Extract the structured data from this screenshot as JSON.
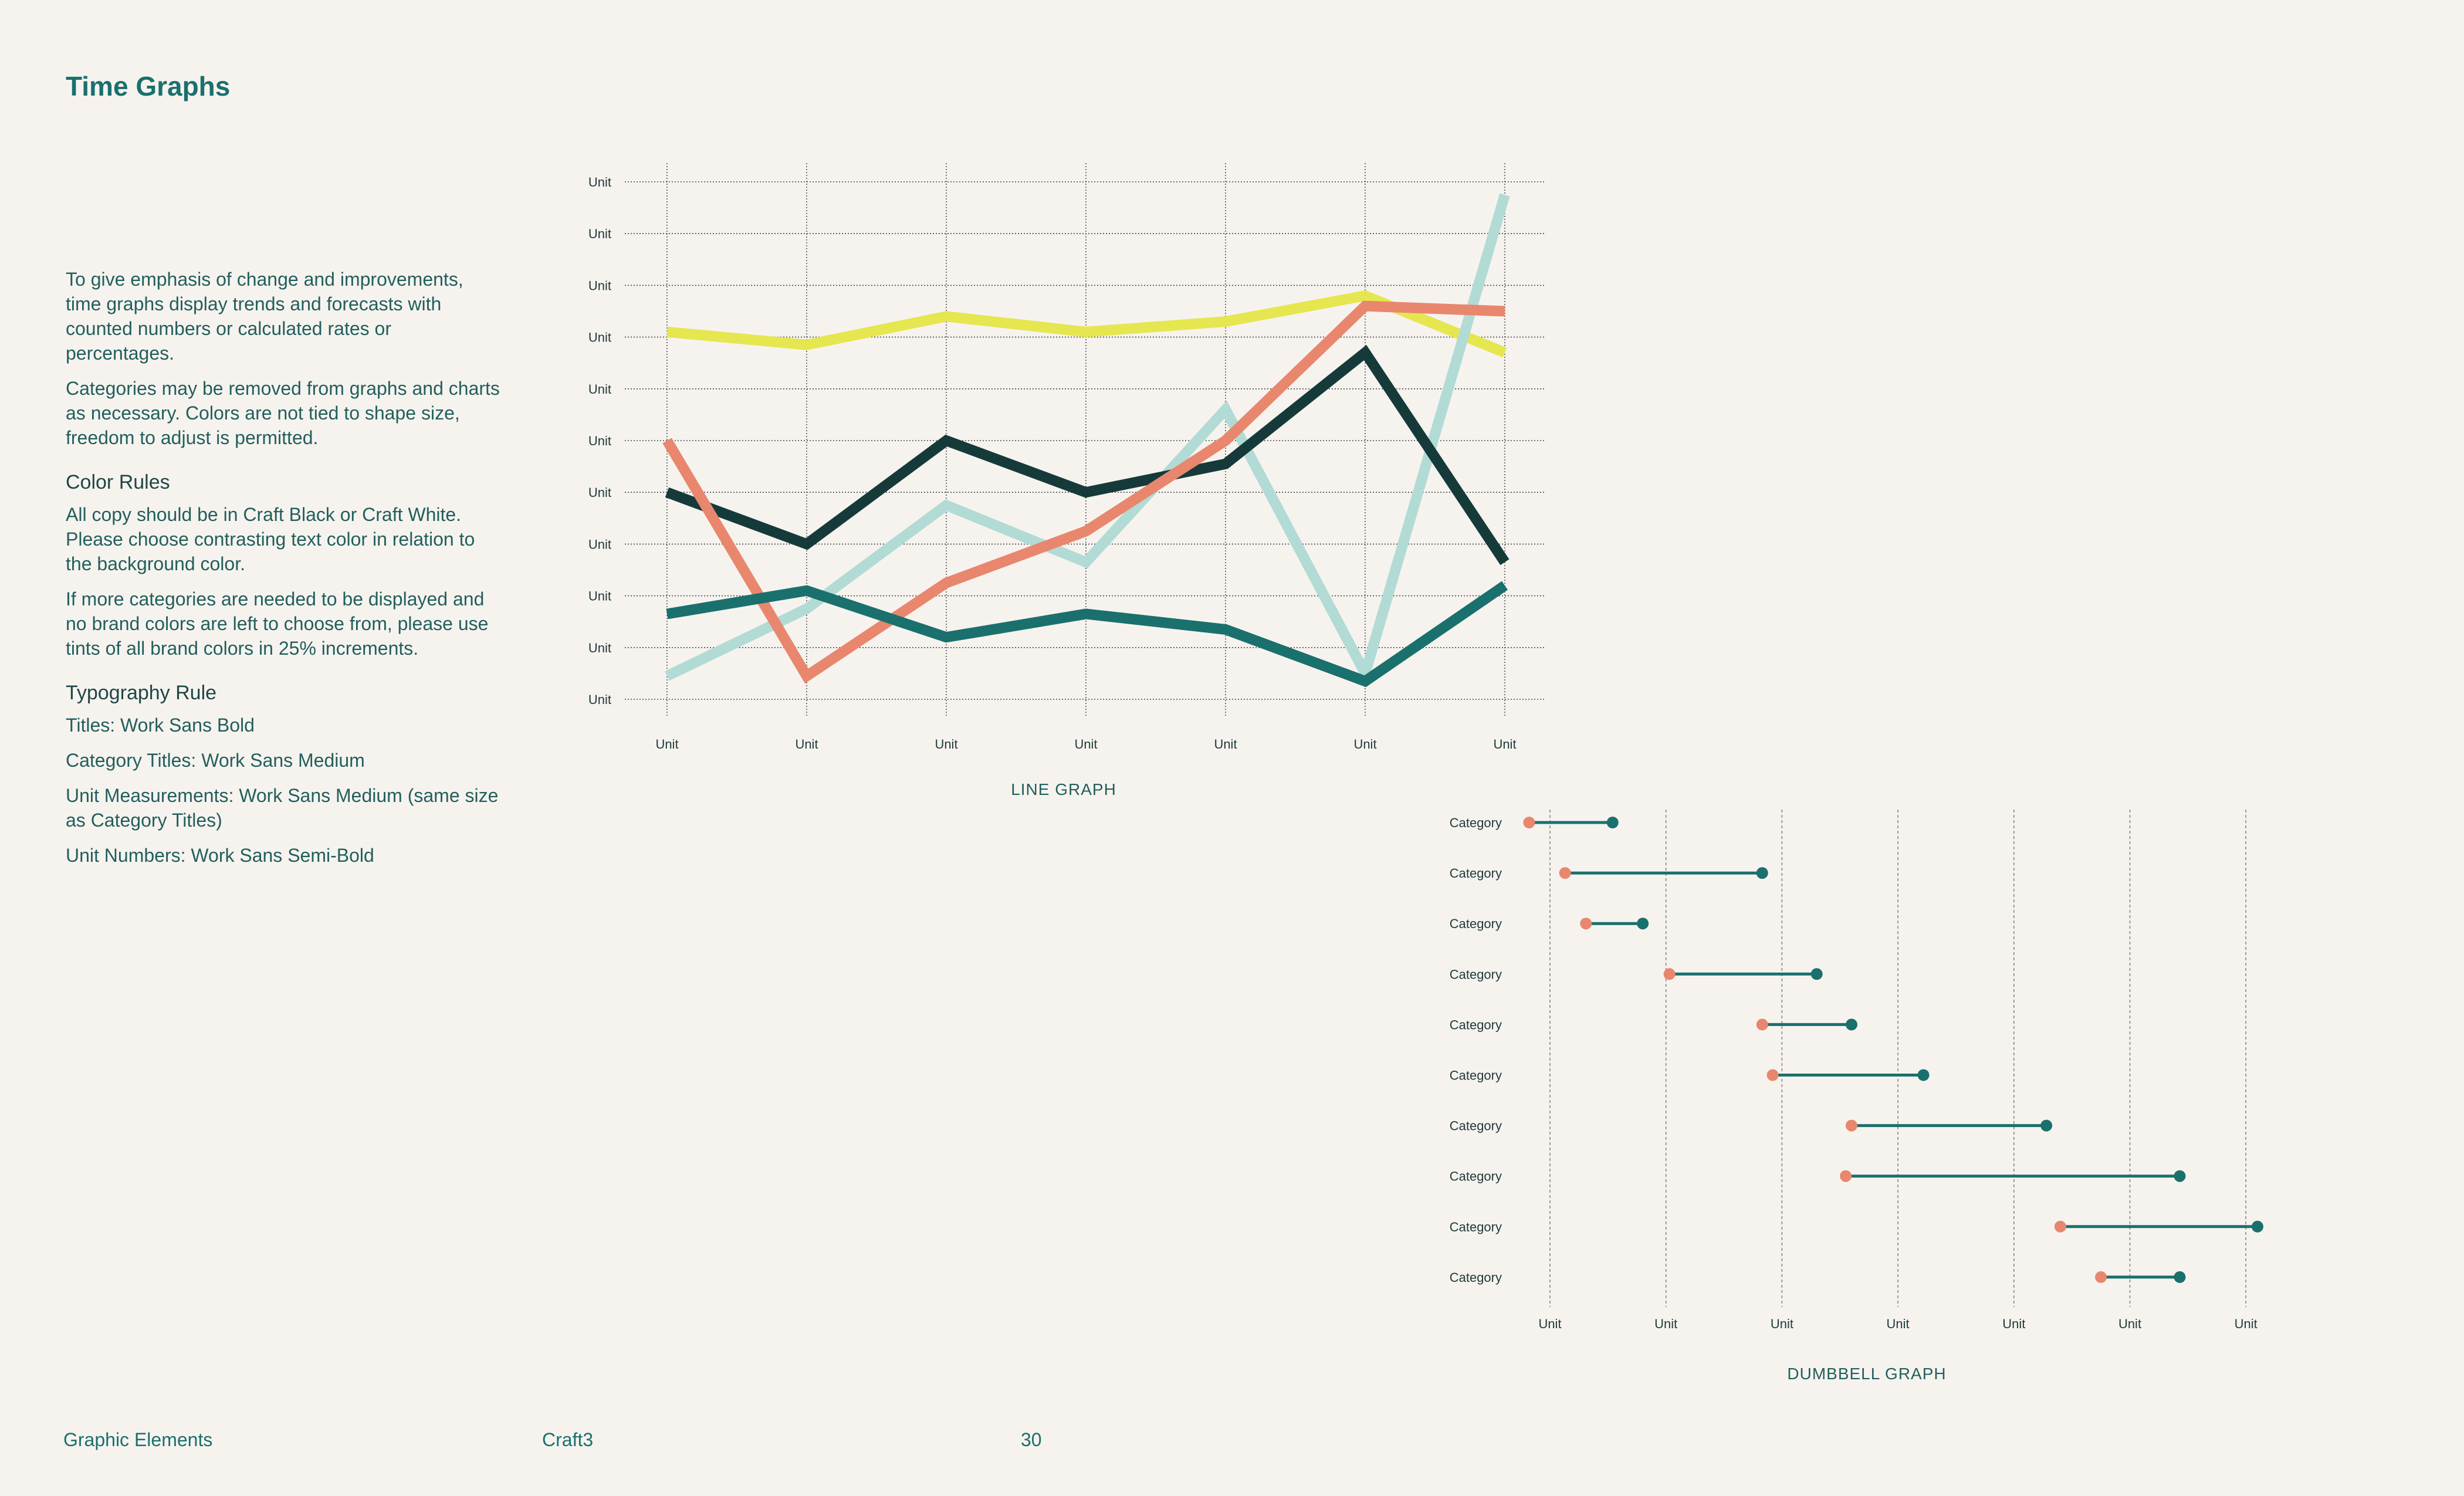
{
  "page": {
    "title": "Time Graphs",
    "paragraphs": [
      "To give emphasis of change and improvements, time graphs display trends and forecasts with counted numbers or calculated rates or percentages.",
      "Categories may be removed from graphs and charts as necessary. Colors are not tied to shape size, freedom to adjust is permitted."
    ],
    "color_rules": {
      "heading": "Color Rules",
      "paragraphs": [
        "All copy should be in Craft Black or Craft White. Please choose contrasting text color in relation to the background color.",
        "If more categories are needed to be displayed and no brand colors are left to choose from, please use tints of all brand colors in 25% increments."
      ]
    },
    "typography": {
      "heading": "Typography Rule",
      "items": [
        "Titles: Work Sans Bold",
        "Category Titles: Work Sans Medium",
        "Unit Measurements: Work Sans Medium (same size as Category Titles)",
        "Unit Numbers: Work Sans Semi-Bold"
      ]
    }
  },
  "footer": {
    "section": "Graphic Elements",
    "brand": "Craft3",
    "page_number": "30"
  },
  "chart_data": [
    {
      "type": "line",
      "title": "LINE GRAPH",
      "x_tick_labels": [
        "Unit",
        "Unit",
        "Unit",
        "Unit",
        "Unit",
        "Unit",
        "Unit"
      ],
      "y_tick_labels": [
        "Unit",
        "Unit",
        "Unit",
        "Unit",
        "Unit",
        "Unit",
        "Unit",
        "Unit",
        "Unit",
        "Unit",
        "Unit"
      ],
      "ylim": [
        0,
        10
      ],
      "grid": true,
      "series": [
        {
          "color": "#e6e650",
          "values": [
            7.1,
            6.85,
            7.4,
            7.1,
            7.3,
            7.8,
            6.7
          ]
        },
        {
          "color": "#b2dbd5",
          "values": [
            0.45,
            1.75,
            3.75,
            2.65,
            5.6,
            0.5,
            9.75
          ]
        },
        {
          "color": "#163a3a",
          "values": [
            4.0,
            3.0,
            5.0,
            4.0,
            4.55,
            6.7,
            2.65
          ]
        },
        {
          "color": "#e8876d",
          "values": [
            5.0,
            0.45,
            2.25,
            3.25,
            5.0,
            7.6,
            7.5
          ]
        },
        {
          "color": "#1a706d",
          "values": [
            1.65,
            2.1,
            1.2,
            1.65,
            1.35,
            0.35,
            2.2
          ]
        }
      ]
    },
    {
      "type": "dumbbell",
      "title": "DUMBBELL GRAPH",
      "x_tick_labels": [
        "Unit",
        "Unit",
        "Unit",
        "Unit",
        "Unit",
        "Unit",
        "Unit"
      ],
      "xlim": [
        0,
        6
      ],
      "grid": true,
      "start_color": "#e8876d",
      "end_color": "#1a706d",
      "categories": [
        "Category",
        "Category",
        "Category",
        "Category",
        "Category",
        "Category",
        "Category",
        "Category",
        "Category",
        "Category"
      ],
      "start": [
        -0.18,
        0.13,
        0.31,
        1.03,
        1.83,
        1.92,
        2.6,
        2.55,
        4.4,
        4.75
      ],
      "end": [
        0.54,
        1.83,
        0.8,
        2.3,
        2.6,
        3.22,
        4.28,
        5.43,
        6.1,
        5.43
      ]
    }
  ]
}
